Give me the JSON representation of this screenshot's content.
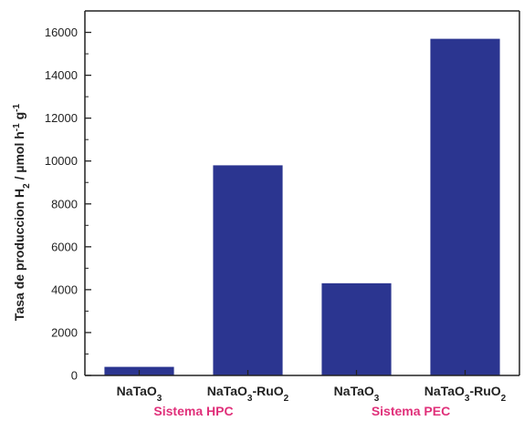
{
  "chart_data": {
    "type": "bar",
    "ylabel": "Tasa de produccion H2 / µmol h-1 g-1",
    "ylabel_parts": {
      "main": "Tasa de produccion H",
      "sub": "2",
      "unit": " / µmol h",
      "sup1": "-1",
      "g": " g",
      "sup2": "-1"
    },
    "ylim": [
      0,
      17000
    ],
    "yticks": [
      0,
      2000,
      4000,
      6000,
      8000,
      10000,
      12000,
      14000,
      16000
    ],
    "categories": [
      "NaTaO3",
      "NaTaO3-RuO2",
      "NaTaO3",
      "NaTaO3-RuO2"
    ],
    "category_parts": [
      {
        "a": "NaTaO",
        "sub": "3",
        "b": ""
      },
      {
        "a": "NaTaO",
        "sub": "3",
        "b": "-RuO",
        "sub2": "2"
      },
      {
        "a": "NaTaO",
        "sub": "3",
        "b": ""
      },
      {
        "a": "NaTaO",
        "sub": "3",
        "b": "-RuO",
        "sub2": "2"
      }
    ],
    "values": [
      400,
      9800,
      4300,
      15700
    ],
    "groups": [
      {
        "label": "Sistema HPC",
        "categories": [
          0,
          1
        ]
      },
      {
        "label": "Sistema PEC",
        "categories": [
          2,
          3
        ]
      }
    ],
    "bar_color": "#2b3590",
    "group_label_color": "#e0307a",
    "grid": false,
    "legend": "none"
  }
}
